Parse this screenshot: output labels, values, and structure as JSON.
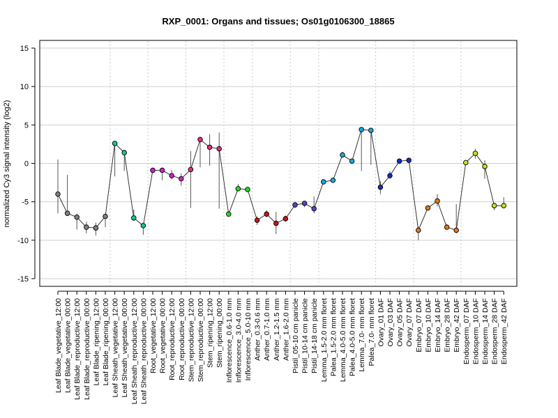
{
  "chart_data": {
    "type": "line",
    "title": "RXP_0001: Organs and tissues; Os01g0106300_18865",
    "xlabel": "",
    "ylabel": "normalized Cy3 signal intensity (log2)",
    "ylim": [
      -16,
      16
    ],
    "yticks": [
      -15,
      -10,
      -5,
      0,
      5,
      10,
      15
    ],
    "grid": true,
    "legend": "none",
    "line_color": "#333333",
    "categories": [
      "Leaf Blade_vegetative_12:00",
      "Leaf Blade_vegetative_00:00",
      "Leaf Blade_reproductive_12:00",
      "Leaf Blade_reproductive_00:00",
      "Leaf Blade_ripening_12:00",
      "Leaf Blade_ripening_00:00",
      "Leaf Sheath_vegetative_12:00",
      "Leaf Sheath_vegetative_00:00",
      "Leaf Sheath_reproductive_12:00",
      "Leaf Sheath_reproductive_00:00",
      "Root_vegetative_12:00",
      "Root_vegetative_00:00",
      "Root_reproductive_12:00",
      "Root_reproductive_00:00",
      "Stem_reproductive_12:00",
      "Stem_reproductive_00:00",
      "Stem_ripening_12:00",
      "Stem_ripening_00:00",
      "Inflorescence_0.6-1.0 mm",
      "Inflorescence_3.0-4.0 mm",
      "Inflorescence_5.0-10 mm",
      "Anther_0.3-0.6 mm",
      "Anther_0.7-1.0 mm",
      "Anther_1.2-1.5 mm",
      "Anther_1.6-2.0 mm",
      "Pistil_05-10 cm panicle",
      "Pistil_10-14 cm panicle",
      "Pistil_14-18 cm panicle",
      "Lemma_1.5-2.0 mm floret",
      "Palea_1.5-2.0 mm floret",
      "Lemma_4.0-5.0 mm floret",
      "Palea_4.0-5.0 mm floret",
      "Lemma_7.0- mm floret",
      "Palea_7.0- mm floret",
      "Ovary_01 DAF",
      "Ovary_03 DAF",
      "Ovary_05 DAF",
      "Ovary_07 DAF",
      "Embryo_07 DAF",
      "Embryo_10 DAF",
      "Embryo_14 DAF",
      "Embryo_28 DAF",
      "Embryo_42 DAF",
      "Endosperm_07 DAF",
      "Endosperm_10 DAF",
      "Endosperm_14 DAF",
      "Endosperm_28 DAF",
      "Endosperm_42 DAF"
    ],
    "values": [
      -4.0,
      -6.5,
      -7.0,
      -8.3,
      -8.4,
      -6.9,
      2.6,
      1.4,
      -7.1,
      -8.1,
      -0.9,
      -0.9,
      -1.6,
      -2.0,
      -0.8,
      3.1,
      2.1,
      1.9,
      -6.6,
      -3.3,
      -3.4,
      -7.4,
      -6.6,
      -7.8,
      -7.2,
      -5.4,
      -5.2,
      -5.9,
      -2.4,
      -2.2,
      1.1,
      0.3,
      4.4,
      4.3,
      -3.1,
      -1.6,
      0.3,
      0.4,
      -8.7,
      -5.8,
      -4.9,
      -8.3,
      -8.7,
      0.1,
      1.3,
      -0.4,
      -5.5,
      -5.5
    ],
    "errors": [
      [
        -6.5,
        0.5
      ],
      [
        -6.5,
        -1.5
      ],
      [
        -8.6,
        -6.6
      ],
      [
        -9.1,
        -7.6
      ],
      [
        -9.4,
        -7.7
      ],
      [
        -8.3,
        -6.6
      ],
      [
        -1.7,
        2.9
      ],
      [
        -1.0,
        1.6
      ],
      [
        -7.5,
        -6.0
      ],
      [
        -9.3,
        -7.8
      ],
      [
        -1.0,
        -0.8
      ],
      [
        -2.2,
        -0.6
      ],
      [
        -2.1,
        -0.9
      ],
      [
        -2.9,
        -1.3
      ],
      [
        -5.8,
        1.6
      ],
      [
        -0.5,
        3.3
      ],
      [
        -0.3,
        3.8
      ],
      [
        -5.9,
        4.0
      ],
      [
        -6.8,
        -6.4
      ],
      [
        -3.5,
        -2.7
      ],
      [
        -3.6,
        -3.2
      ],
      [
        -8.0,
        -6.9
      ],
      [
        -7.0,
        -6.1
      ],
      [
        -9.2,
        -6.3
      ],
      [
        -7.6,
        -6.8
      ],
      [
        -5.8,
        -5.0
      ],
      [
        -5.7,
        -4.9
      ],
      [
        -6.5,
        -4.3
      ],
      [
        -2.7,
        -2.1
      ],
      [
        -2.5,
        -1.9
      ],
      [
        0.8,
        1.5
      ],
      [
        0.0,
        0.6
      ],
      [
        -1.0,
        4.7
      ],
      [
        -0.2,
        4.6
      ],
      [
        -4.0,
        -2.3
      ],
      [
        -2.0,
        -1.0
      ],
      [
        0.0,
        0.6
      ],
      [
        0.1,
        0.7
      ],
      [
        -10.0,
        -8.2
      ],
      [
        -6.1,
        -5.5
      ],
      [
        -5.6,
        -4.0
      ],
      [
        -8.6,
        -8.0
      ],
      [
        -9.1,
        -5.3
      ],
      [
        -0.2,
        0.4
      ],
      [
        0.6,
        1.9
      ],
      [
        -2.0,
        0.4
      ],
      [
        -6.1,
        -5.2
      ],
      [
        -5.8,
        -4.4
      ]
    ],
    "point_colors": [
      "#808080",
      "#808080",
      "#808080",
      "#808080",
      "#808080",
      "#808080",
      "#10c888",
      "#10c888",
      "#10c888",
      "#10c888",
      "#d020d0",
      "#d020d0",
      "#d020d0",
      "#d020d0",
      "#e03080",
      "#e03080",
      "#e03080",
      "#e03080",
      "#22dd22",
      "#22dd22",
      "#22dd22",
      "#cc1515",
      "#cc1515",
      "#cc1515",
      "#cc1515",
      "#6040c8",
      "#6040c8",
      "#6040c8",
      "#18a8e0",
      "#18a8e0",
      "#18a8e0",
      "#18a8e0",
      "#18a8e0",
      "#18a8e0",
      "#1030c0",
      "#1030c0",
      "#1030c0",
      "#1030c0",
      "#e07818",
      "#e07818",
      "#e07818",
      "#e07818",
      "#e07818",
      "#c8e020",
      "#c8e020",
      "#c8e020",
      "#c8e020",
      "#c8e020"
    ],
    "group_separators_after_index": [
      5,
      9,
      13,
      17,
      20,
      24,
      27,
      33,
      37,
      42
    ]
  }
}
